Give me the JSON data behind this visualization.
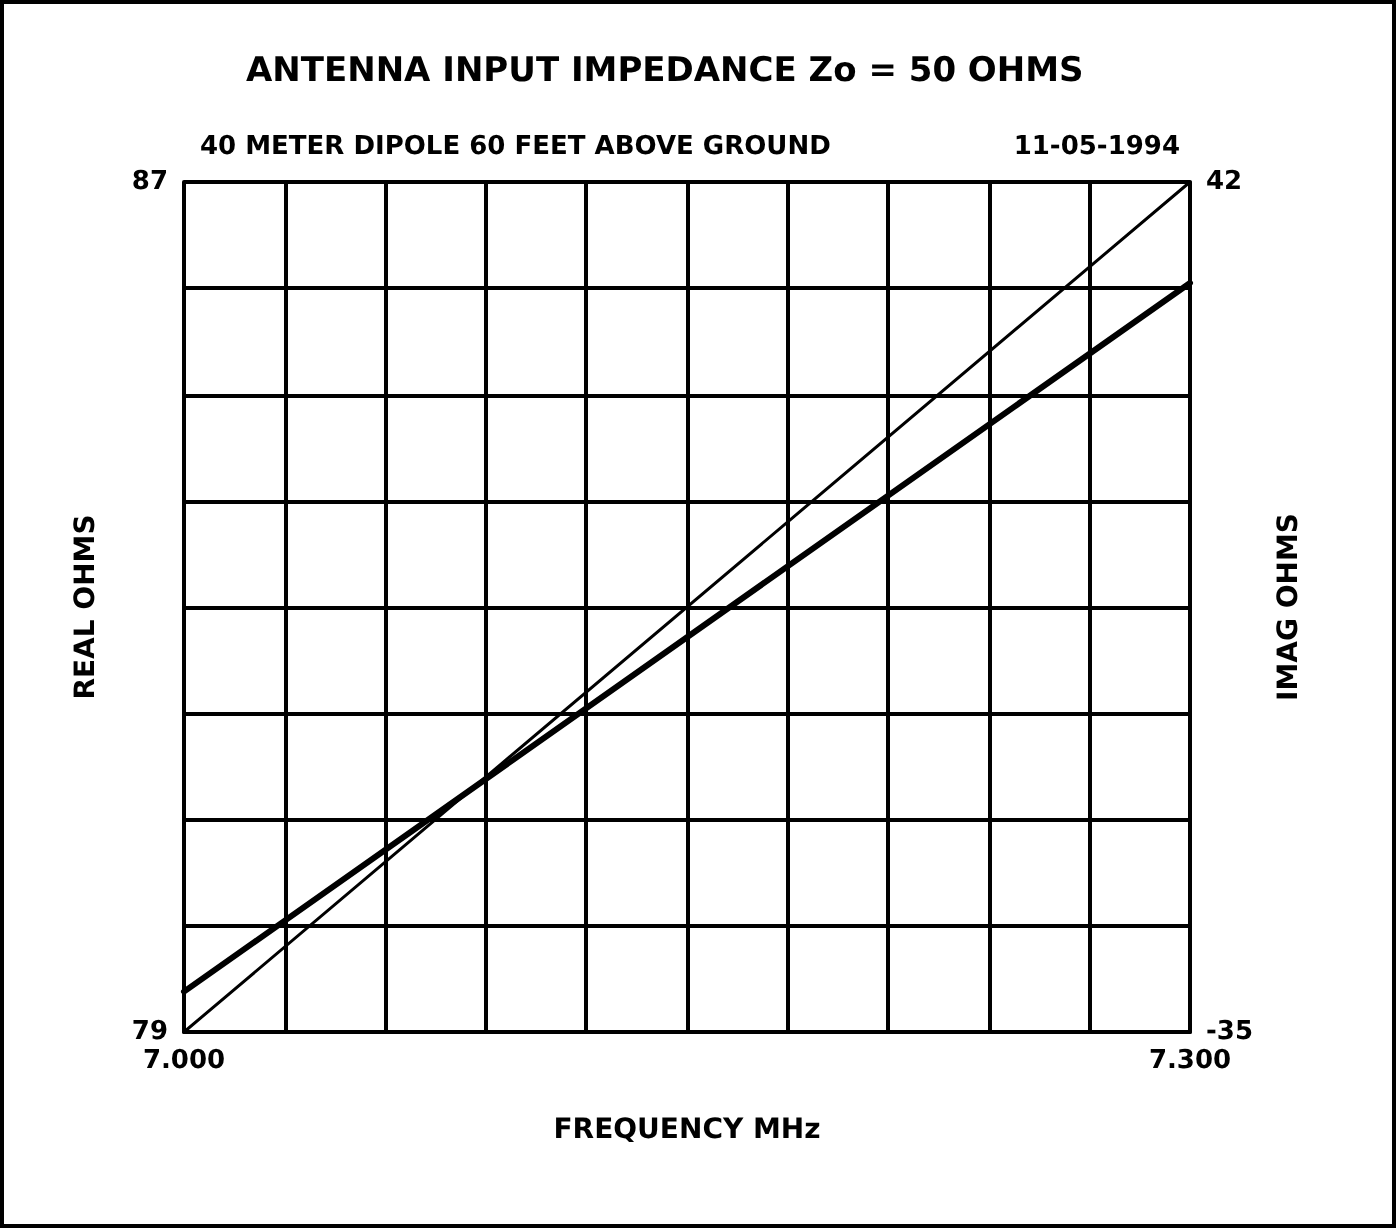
{
  "chart_data": {
    "type": "line",
    "title": "ANTENNA INPUT IMPEDANCE Zo = 50 OHMS",
    "subtitle": "40 METER DIPOLE 60 FEET ABOVE GROUND",
    "annotations": [
      "11-05-1994"
    ],
    "xlabel": "FREQUENCY MHz",
    "ylabel": "REAL OHMS",
    "y2label": "IMAG OHMS",
    "xlim": [
      7.0,
      7.3
    ],
    "xticks": [
      {
        "value": 7.0,
        "label": "7.000"
      },
      {
        "value": 7.03,
        "label": null
      },
      {
        "value": 7.06,
        "label": null
      },
      {
        "value": 7.09,
        "label": null
      },
      {
        "value": 7.12,
        "label": null
      },
      {
        "value": 7.15,
        "label": null
      },
      {
        "value": 7.18,
        "label": null
      },
      {
        "value": 7.21,
        "label": null
      },
      {
        "value": 7.24,
        "label": null
      },
      {
        "value": 7.27,
        "label": null
      },
      {
        "value": 7.3,
        "label": "7.300"
      }
    ],
    "ylim": [
      79,
      87
    ],
    "yticks": [
      79,
      {
        "value": 80,
        "label": null
      },
      {
        "value": 81,
        "label": null
      },
      {
        "value": 82,
        "label": null
      },
      {
        "value": 83,
        "label": null
      },
      {
        "value": 84,
        "label": null
      },
      {
        "value": 85,
        "label": null
      },
      {
        "value": 86,
        "label": null
      },
      87
    ],
    "y2lim": [
      -35,
      42
    ],
    "y2ticks": [
      -35,
      42
    ],
    "x": [
      7.0,
      7.3
    ],
    "grid": true,
    "marker": "none",
    "line_style": "solid",
    "series": [
      {
        "color": "#000000",
        "values": [
          79.38,
          86.05
        ]
      },
      {
        "color": "#000000",
        "values": [
          -35,
          42
        ],
        "axis": "y2"
      }
    ]
  }
}
